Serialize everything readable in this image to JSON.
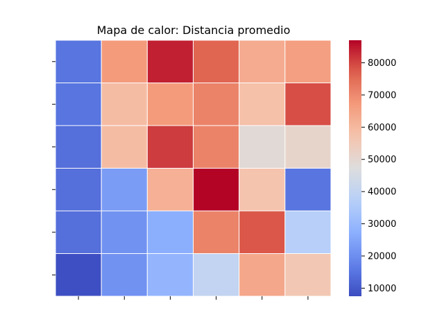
{
  "chart_data": {
    "type": "heatmap",
    "title": "Mapa de calor: Distancia promedio",
    "xlabel": "",
    "ylabel": "",
    "rows": 6,
    "cols": 6,
    "x_tick_labels": [
      "",
      "",
      "",
      "",
      "",
      ""
    ],
    "y_tick_labels": [
      "",
      "",
      "",
      "",
      "",
      ""
    ],
    "values": [
      [
        15000,
        67000,
        84000,
        76000,
        63000,
        66000
      ],
      [
        15000,
        59000,
        67000,
        71000,
        58000,
        79000
      ],
      [
        14000,
        59000,
        81000,
        71000,
        49000,
        51000
      ],
      [
        14000,
        23000,
        62000,
        87000,
        57000,
        15000
      ],
      [
        14000,
        21000,
        27000,
        71000,
        78000,
        37000
      ],
      [
        8000,
        21000,
        29000,
        40000,
        64000,
        56000
      ]
    ],
    "colorbar": {
      "min": 7500,
      "max": 87000,
      "ticks": [
        10000,
        20000,
        30000,
        40000,
        50000,
        60000,
        70000,
        80000
      ],
      "tick_labels": [
        "10000",
        "20000",
        "30000",
        "40000",
        "50000",
        "60000",
        "70000",
        "80000"
      ]
    },
    "colormap": "coolwarm",
    "cell_borders": "white",
    "grid": false,
    "legend": "colorbar-right"
  }
}
